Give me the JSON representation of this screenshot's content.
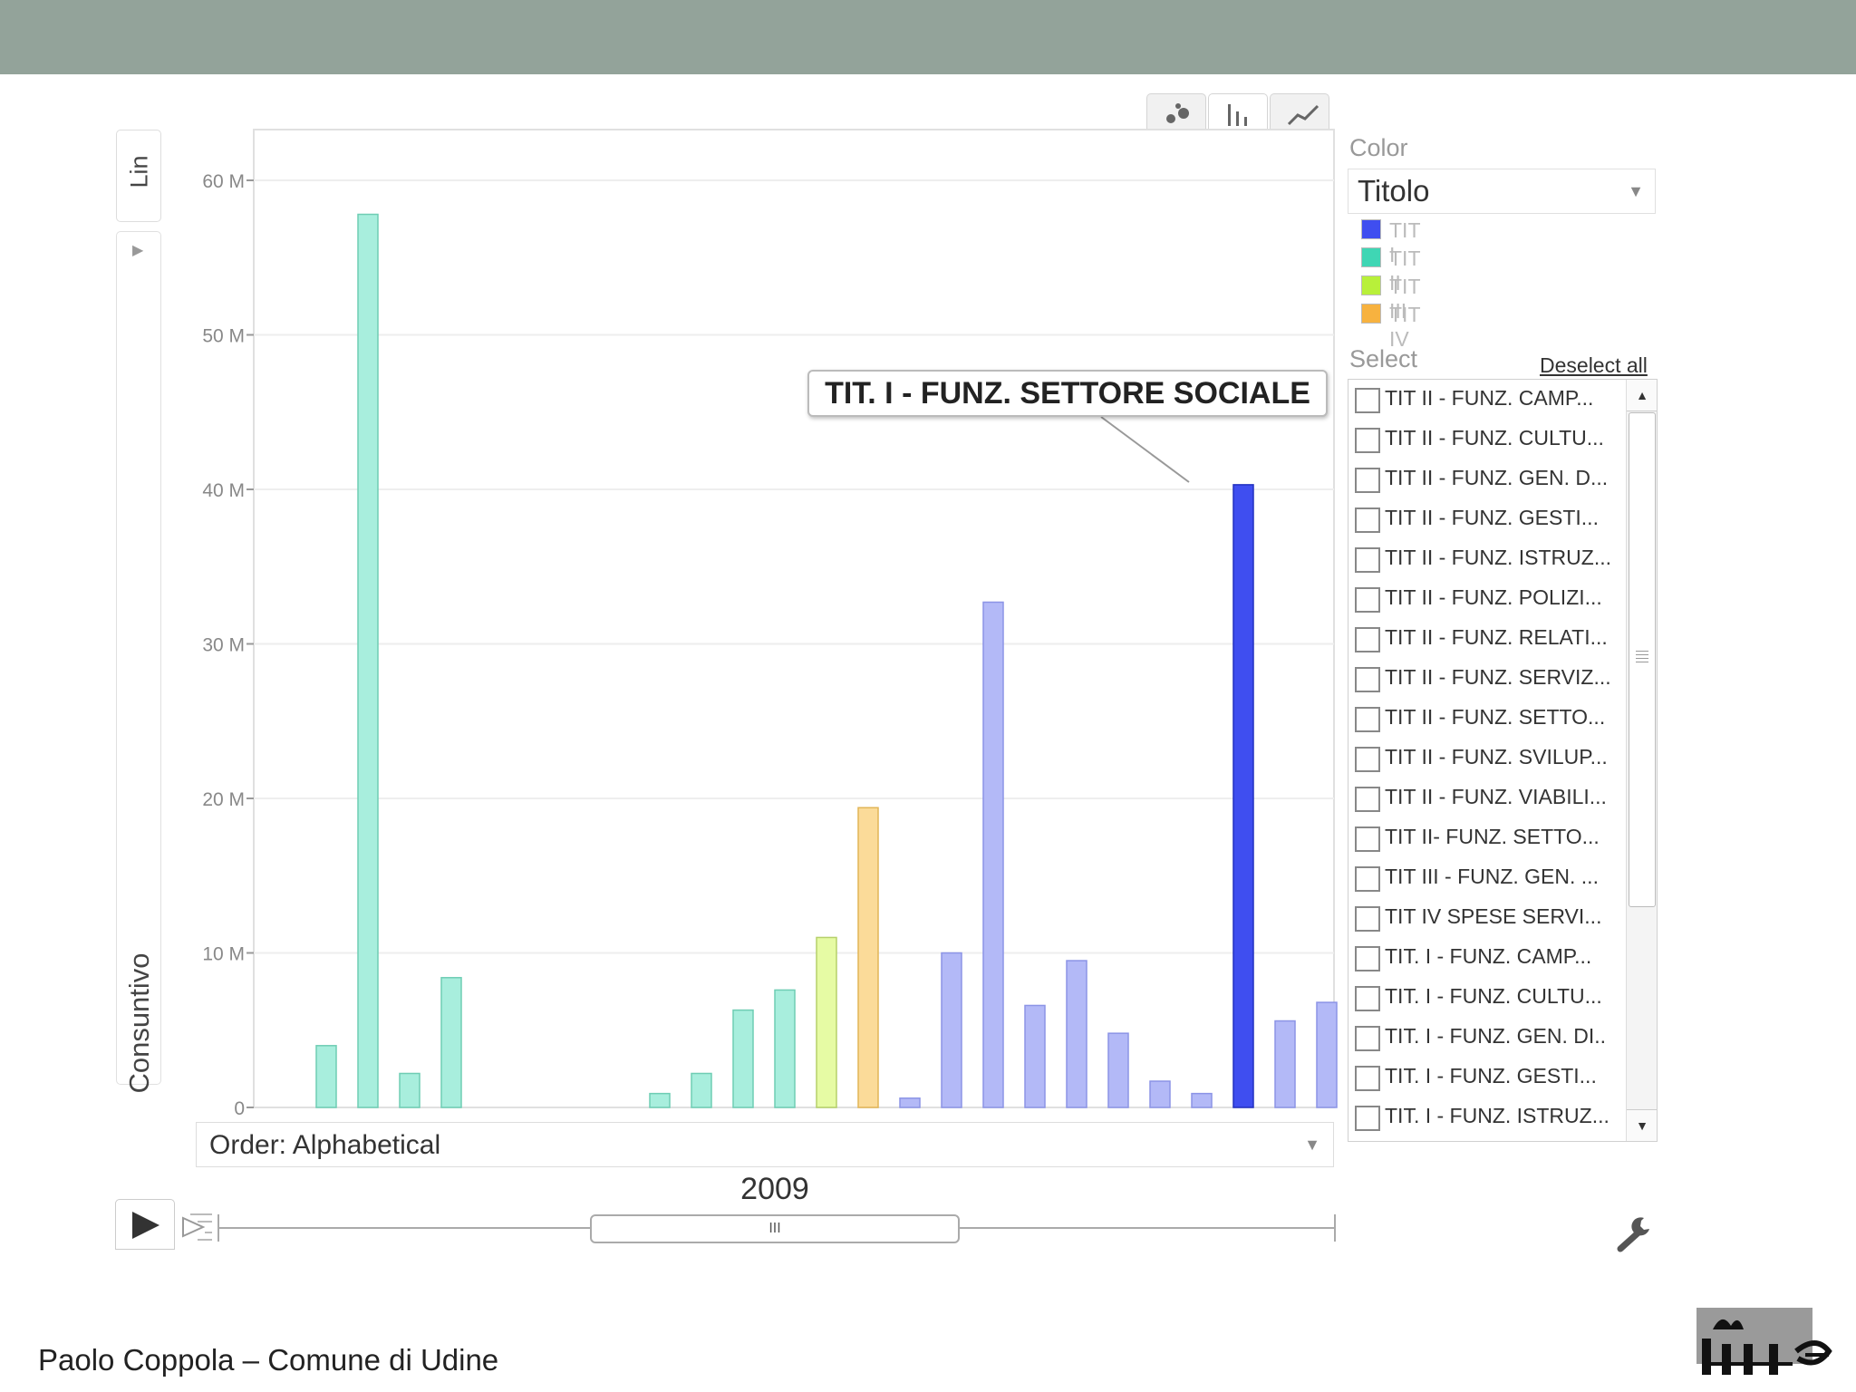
{
  "footer": {
    "author": "Paolo Coppola – Comune di Udine"
  },
  "controls": {
    "y_scale": "Lin",
    "y_metric": "Consuntivo",
    "order_label": "Order: Alphabetical",
    "year": "2009",
    "slider_thumb": "III"
  },
  "color_panel": {
    "label": "Color",
    "selected": "Titolo",
    "legend": [
      {
        "label": "TIT I",
        "color": "#3f4ef0"
      },
      {
        "label": "TIT II",
        "color": "#3fd6b4"
      },
      {
        "label": "TIT III",
        "color": "#b8f03a"
      },
      {
        "label": "TIT IV",
        "color": "#f7b23f"
      }
    ]
  },
  "select_panel": {
    "label": "Select",
    "deselect_all": "Deselect all",
    "items": [
      "TIT II - FUNZ. CAMP...",
      "TIT II - FUNZ. CULTU...",
      "TIT II - FUNZ. GEN. D...",
      "TIT II - FUNZ. GESTI...",
      "TIT II - FUNZ. ISTRUZ...",
      "TIT II - FUNZ. POLIZI...",
      "TIT II - FUNZ. RELATI...",
      "TIT II - FUNZ. SERVIZ...",
      "TIT II - FUNZ. SETTO...",
      "TIT II - FUNZ. SVILUP...",
      "TIT II - FUNZ. VIABILI...",
      "TIT II- FUNZ. SETTO...",
      "TIT III - FUNZ. GEN. ...",
      "TIT IV SPESE SERVI...",
      "TIT. I - FUNZ.  CAMP...",
      "TIT. I - FUNZ. CULTU...",
      "TIT. I - FUNZ. GEN. DI..",
      "TIT. I - FUNZ. GESTI...",
      "TIT. I - FUNZ. ISTRUZ..."
    ]
  },
  "callout": {
    "text": "TIT. I - FUNZ. SETTORE SOCIALE",
    "bar_index": 22
  },
  "chart_data": {
    "type": "bar",
    "ylim": [
      0,
      63
    ],
    "yticks": [
      0,
      10,
      20,
      30,
      40,
      50,
      60
    ],
    "ytick_labels": [
      "0",
      "10 M",
      "20 M",
      "30 M",
      "40 M",
      "50 M",
      "60 M"
    ],
    "ylabel": "Consuntivo",
    "unit": "M",
    "values": [
      0,
      4.0,
      57.8,
      2.2,
      8.4,
      0,
      0,
      0,
      0,
      0.9,
      2.2,
      6.3,
      7.6,
      11.0,
      19.4,
      0.6,
      10.0,
      32.7,
      6.6,
      9.5,
      4.8,
      1.7,
      0.9,
      40.3,
      5.6,
      6.8,
      0.1
    ],
    "groups": [
      "TIT II",
      "TIT II",
      "TIT II",
      "TIT II",
      "TIT II",
      "TIT II",
      "TIT II",
      "TIT II",
      "TIT II",
      "TIT II",
      "TIT II",
      "TIT II",
      "TIT II",
      "TIT III",
      "TIT IV",
      "TIT I",
      "TIT I",
      "TIT I",
      "TIT I",
      "TIT I",
      "TIT I",
      "TIT I",
      "TIT I",
      "TIT I",
      "TIT I",
      "TIT I",
      "TIT I"
    ],
    "colors": {
      "TIT I": {
        "fill": "#b3b9f7",
        "stroke": "#8c94e6"
      },
      "TIT II": {
        "fill": "#a8eedd",
        "stroke": "#6fcdb4"
      },
      "TIT III": {
        "fill": "#e6fba4",
        "stroke": "#b6d06a"
      },
      "TIT IV": {
        "fill": "#fbdb99",
        "stroke": "#e2b556"
      }
    },
    "highlight_color": "#3f4ef0",
    "grid": true,
    "legend_position": "right"
  }
}
